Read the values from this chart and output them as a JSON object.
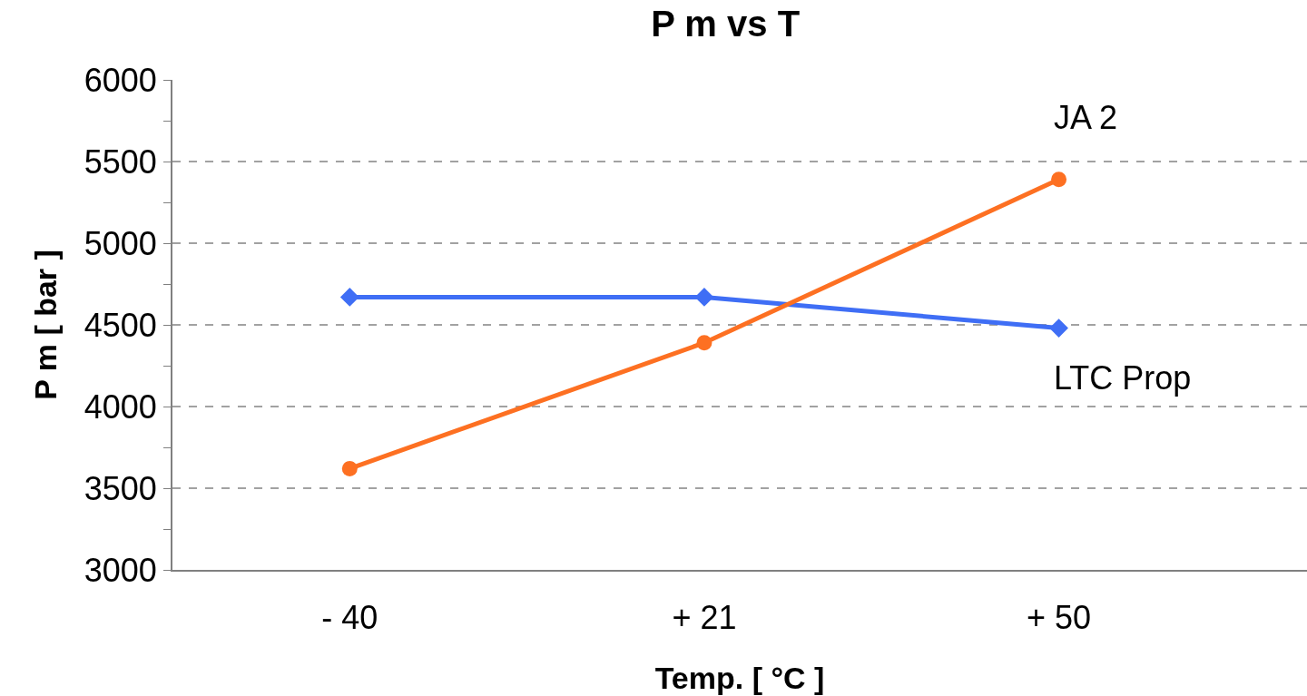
{
  "chart_data": {
    "type": "line",
    "title": "P m vs T",
    "xlabel": "Temp. [ °C ]",
    "ylabel": "P m [ bar ]",
    "categories": [
      "- 40",
      "+ 21",
      "+ 50"
    ],
    "series": [
      {
        "name": "LTC Prop",
        "color": "#3f6ef5",
        "marker": "diamond",
        "values": [
          4670,
          4670,
          4480
        ]
      },
      {
        "name": "JA 2",
        "color": "#fd7022",
        "marker": "circle",
        "values": [
          3620,
          4390,
          5390
        ]
      }
    ],
    "ylim": [
      3000,
      6000
    ],
    "yticks": [
      3000,
      {
        "value": 3250,
        "label": null
      },
      3500,
      {
        "value": 3750,
        "label": null
      },
      4000,
      {
        "value": 4250,
        "label": null
      },
      4500,
      {
        "value": 4750,
        "label": null
      },
      5000,
      {
        "value": 5250,
        "label": null
      },
      5500,
      {
        "value": 5750,
        "label": null
      },
      6000
    ],
    "grid": "y",
    "legend": false,
    "line_style": "solid"
  }
}
